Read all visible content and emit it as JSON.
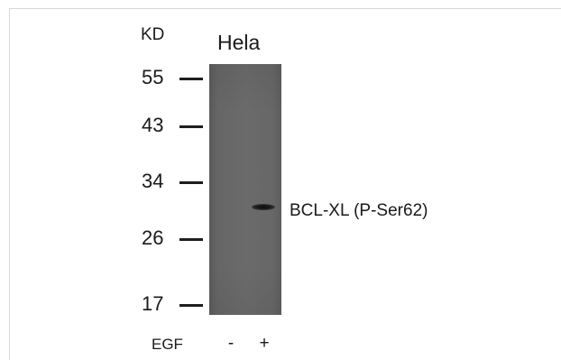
{
  "figure": {
    "unit_label": "KD",
    "sample_label": "Hela",
    "markers": [
      "55",
      "43",
      "34",
      "26",
      "17"
    ],
    "band_label": "BCL-XL (P-Ser62)",
    "treatment_label": "EGF",
    "lanes": [
      "-",
      "+"
    ]
  },
  "chart_data": {
    "type": "western_blot",
    "molecular_weight_unit": "KD",
    "ladder_kd": [
      55,
      43,
      34,
      26,
      17
    ],
    "cell_line": "Hela",
    "treatment": "EGF",
    "lanes": [
      {
        "treatment": "-",
        "band_detected": false
      },
      {
        "treatment": "+",
        "band_detected": true
      }
    ],
    "target": "BCL-XL (P-Ser62)",
    "colors": {
      "membrane": "#686868",
      "band": "#151515",
      "background": "#ffffff"
    }
  }
}
